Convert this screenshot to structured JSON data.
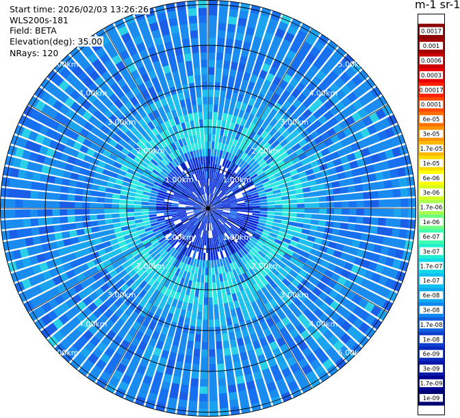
{
  "header": {
    "start_time": "Start time: 2026/02/03 13:26:26",
    "instrument": "WLS200s-181",
    "field": "Field: BETA",
    "elevation": "Elevation(deg): 35.00",
    "nrays": "NRays: 120"
  },
  "colorbar": {
    "title": "m-1 sr-1",
    "labels": [
      "0.0017",
      "0.001",
      "0.0006",
      "0.0003",
      "0.00017",
      "0.0001",
      "6e-05",
      "3e-05",
      "1.7e-05",
      "1e-05",
      "6e-06",
      "3e-06",
      "1.7e-06",
      "1e-06",
      "6e-07",
      "3e-07",
      "1.7e-07",
      "1e-07",
      "6e-08",
      "3e-08",
      "1.7e-08",
      "1e-08",
      "6e-09",
      "3e-09",
      "1.7e-09",
      "1e-09"
    ],
    "colors": [
      "#8b0000",
      "#a00000",
      "#c80000",
      "#e80000",
      "#ff2000",
      "#ff4a00",
      "#ff7000",
      "#ff9500",
      "#ffb800",
      "#ffdc00",
      "#ffff00",
      "#d8ff20",
      "#a8ff50",
      "#70ff80",
      "#40ffb0",
      "#20f0d0",
      "#10d8e8",
      "#10c0f0",
      "#10a8f0",
      "#1088f0",
      "#1060e0",
      "#1040d0",
      "#0828c0",
      "#0818a8",
      "#000090",
      "#000070"
    ]
  },
  "chart_data": {
    "type": "heatmap",
    "projection": "polar (PPI scan)",
    "range_rings_km": [
      1,
      2,
      3,
      4,
      5
    ],
    "ring_labels": [
      "1.00km",
      "2.00km",
      "3.00km",
      "4.00km",
      "5.00km"
    ],
    "nrays": 120,
    "max_range_km": 5.1,
    "scale": "log",
    "value_range": [
      1e-09,
      0.0017
    ],
    "pattern": "near range (<1.2 km) dominated by ~1e-8 (blue), ring 1.3–2.3 km ~1e-7 to 3e-7 (cyan), far range ~3e-8 to 6e-8 with noise"
  }
}
